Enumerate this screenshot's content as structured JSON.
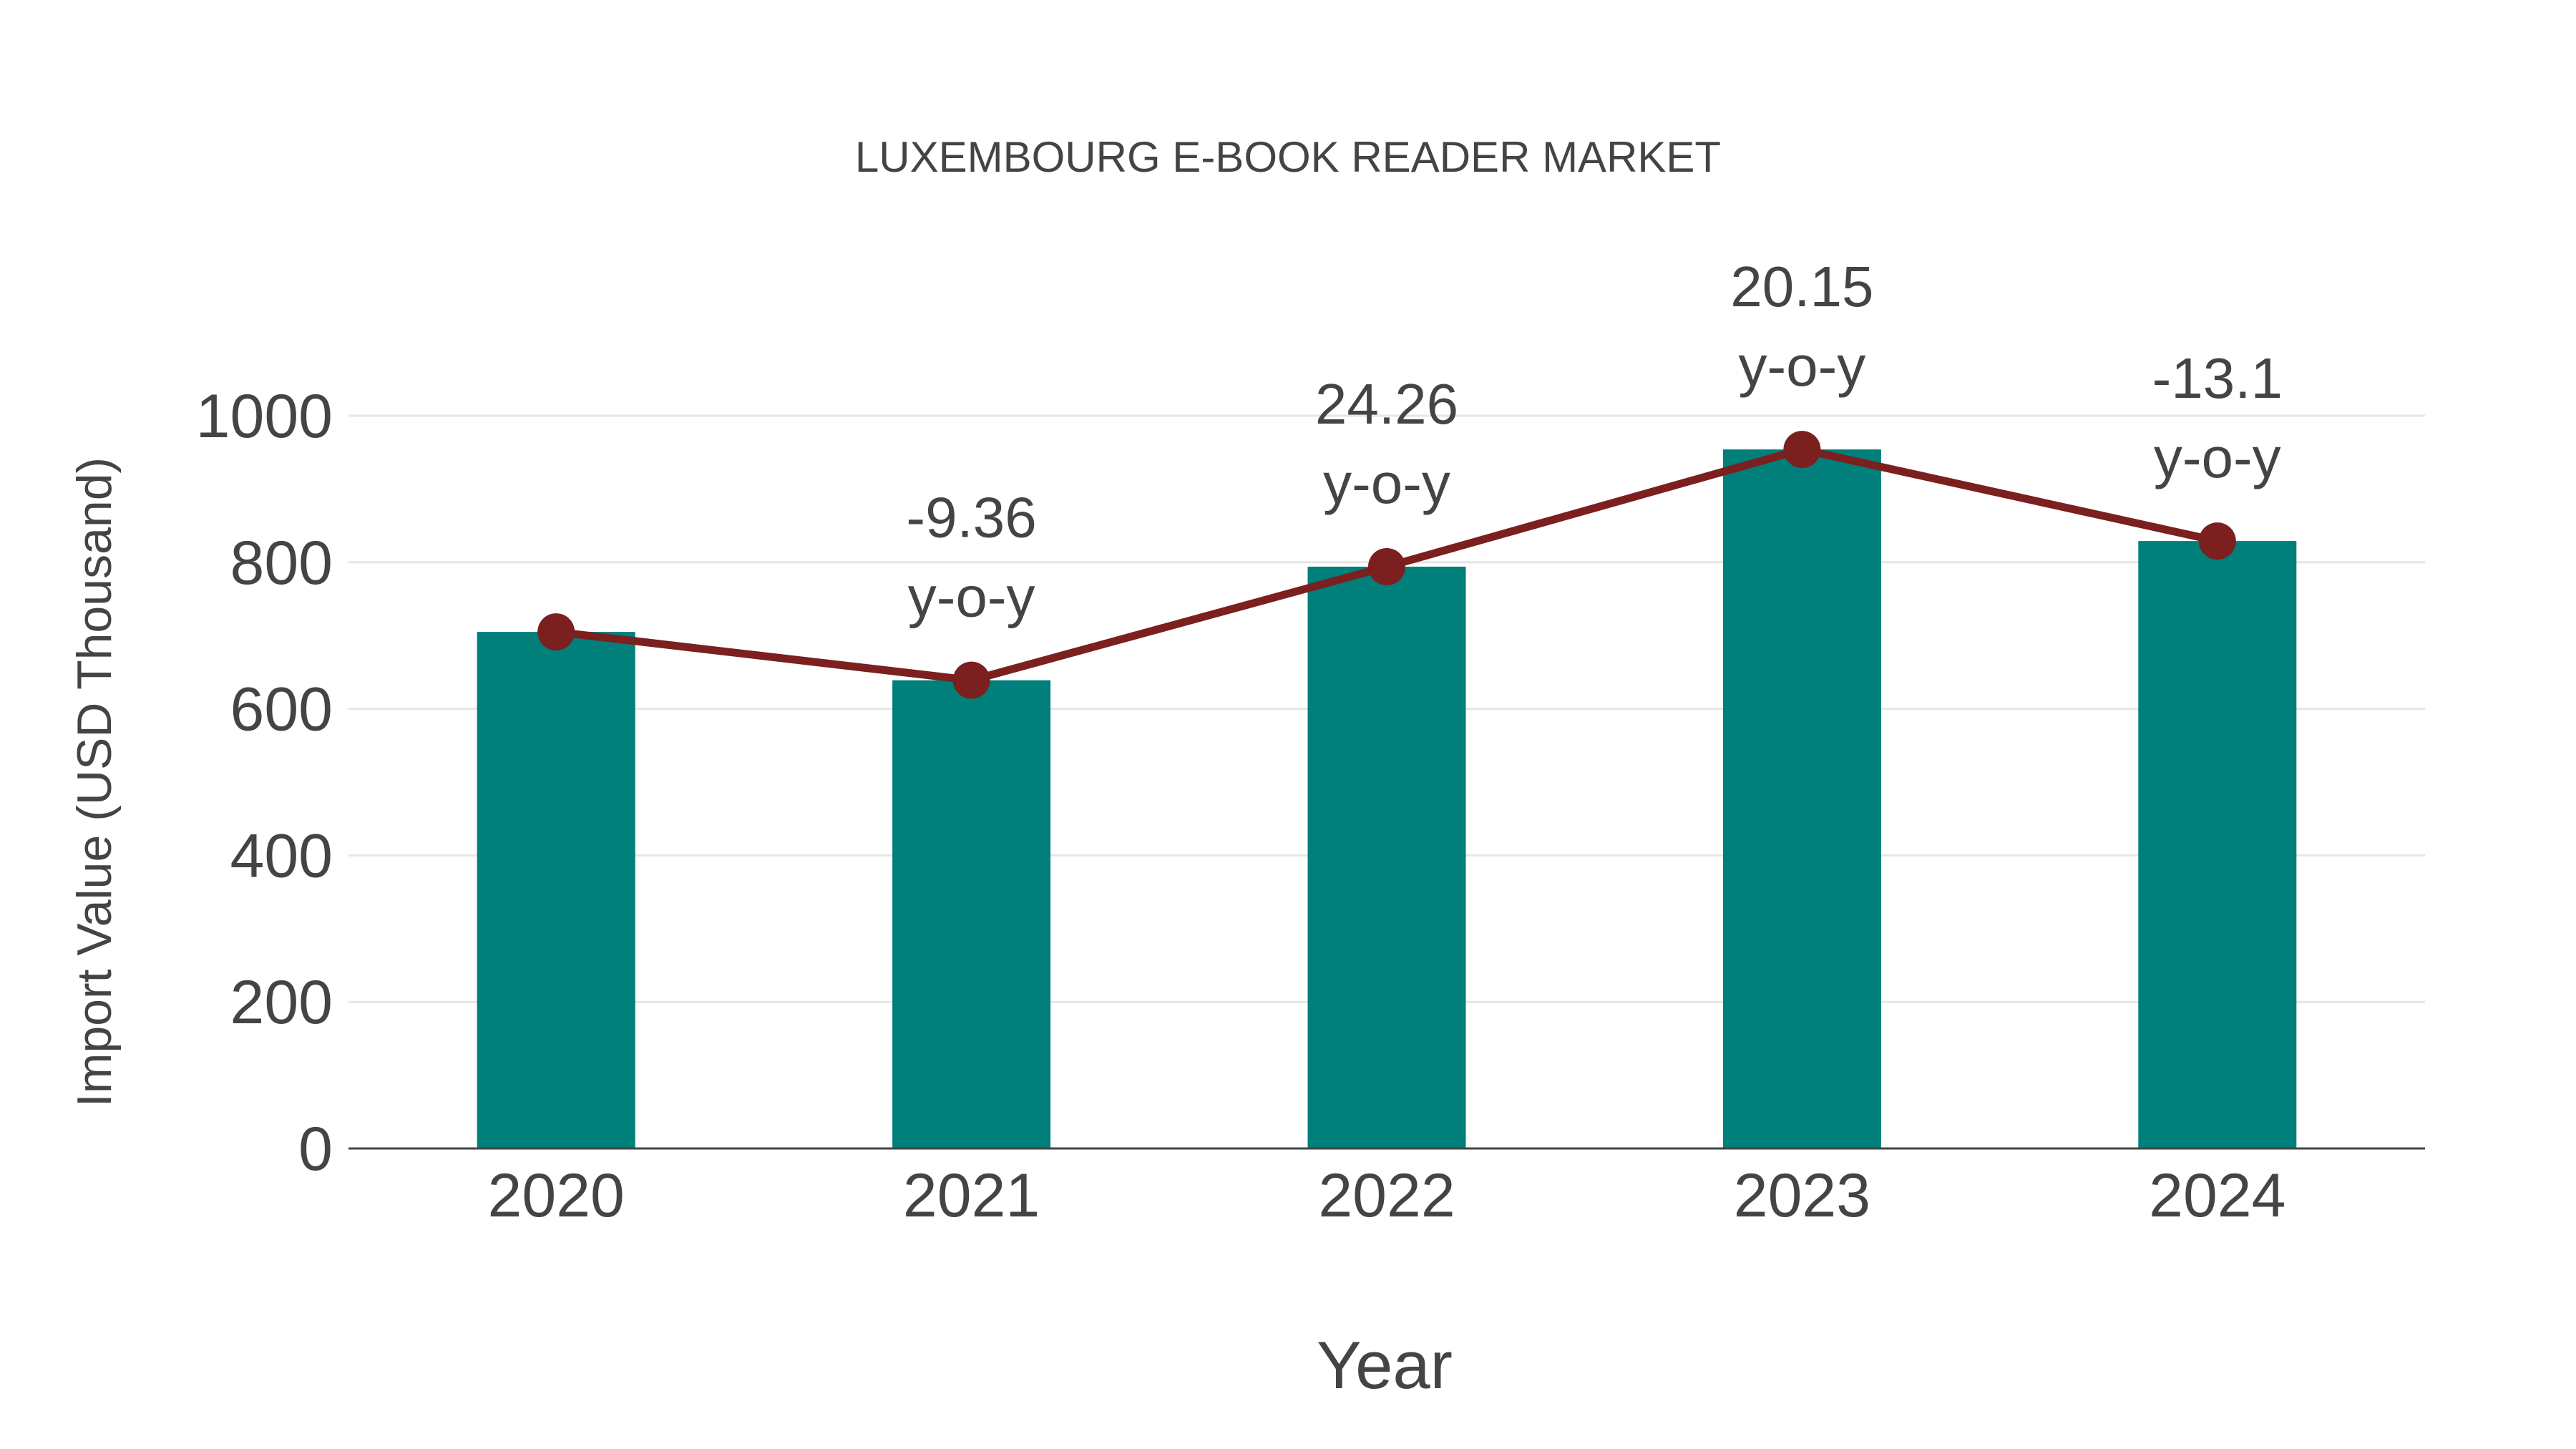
{
  "chart": {
    "title": "LUXEMBOURG E-BOOK READER MARKET",
    "x_axis_title": "Year",
    "y_axis_title": "Import Value (USD Thousand)",
    "colors": {
      "bar": "#007F7B",
      "line": "#7B1F1F",
      "grid": "#E6E6E6",
      "axis": "#444444",
      "text": "#444444"
    }
  },
  "chart_data": {
    "type": "bar",
    "title": "LUXEMBOURG E-BOOK READER MARKET",
    "xlabel": "Year",
    "ylabel": "Import Value (USD Thousand)",
    "categories": [
      "2020",
      "2021",
      "2022",
      "2023",
      "2024"
    ],
    "series": [
      {
        "name": "Import Value (bars)",
        "type": "bar",
        "color": "#007F7B",
        "values": [
          705,
          639,
          794,
          954,
          829
        ]
      },
      {
        "name": "Import Value (line)",
        "type": "line",
        "color": "#7B1F1F",
        "values": [
          705,
          639,
          794,
          954,
          829
        ]
      }
    ],
    "annotations": [
      {
        "x": "2021",
        "value": "-9.36",
        "suffix": "y-o-y"
      },
      {
        "x": "2022",
        "value": "24.26",
        "suffix": "y-o-y"
      },
      {
        "x": "2023",
        "value": "20.15",
        "suffix": "y-o-y"
      },
      {
        "x": "2024",
        "value": "-13.1",
        "suffix": "y-o-y"
      }
    ],
    "yticks": [
      "0",
      "200",
      "400",
      "600",
      "800",
      "1000"
    ],
    "ylim": [
      0,
      1100
    ],
    "grid": true,
    "legend": "none"
  }
}
